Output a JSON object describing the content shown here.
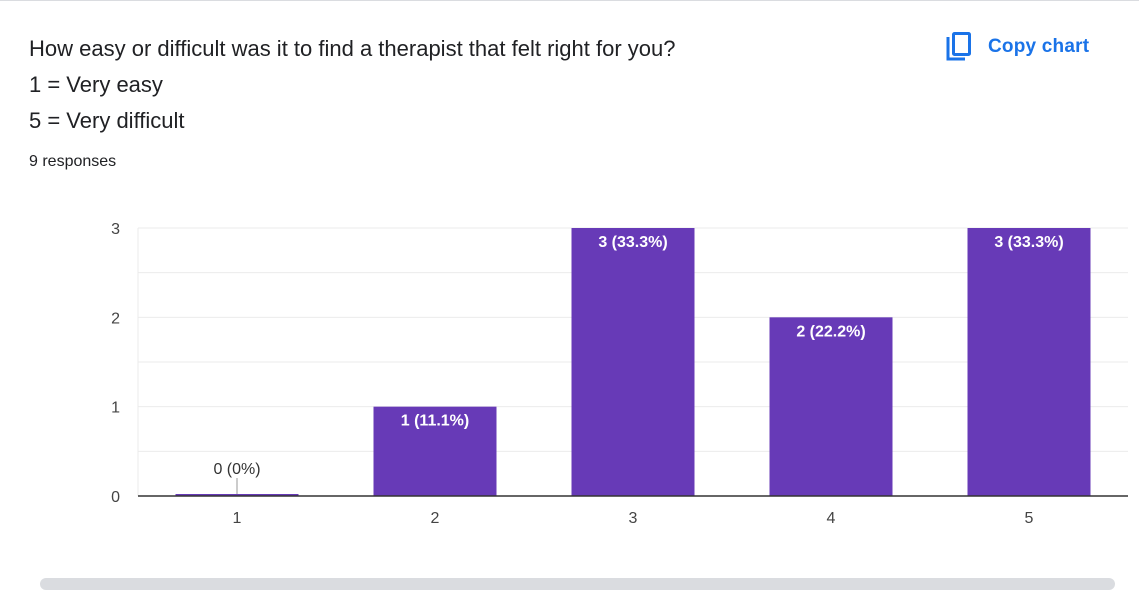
{
  "header": {
    "title_lines": [
      "How easy or difficult was it to find a therapist that felt right for you?",
      "1 = Very easy",
      "5 = Very difficult"
    ],
    "responses": "9 responses",
    "copy_label": "Copy chart"
  },
  "colors": {
    "bar": "#673ab7",
    "grid": "#ebebeb",
    "axis": "#333333",
    "accent": "#1a73e8"
  },
  "icons": {
    "copy": "copy-icon"
  },
  "chart_data": {
    "type": "bar",
    "categories": [
      "1",
      "2",
      "3",
      "4",
      "5"
    ],
    "values": [
      0,
      1,
      3,
      2,
      3
    ],
    "data_labels": [
      "0 (0%)",
      "1 (11.1%)",
      "3 (33.3%)",
      "2 (22.2%)",
      "3 (33.3%)"
    ],
    "y_ticks": [
      "0",
      "1",
      "2",
      "3"
    ],
    "ylim": [
      0,
      3
    ],
    "grid": true,
    "legend": "none"
  }
}
